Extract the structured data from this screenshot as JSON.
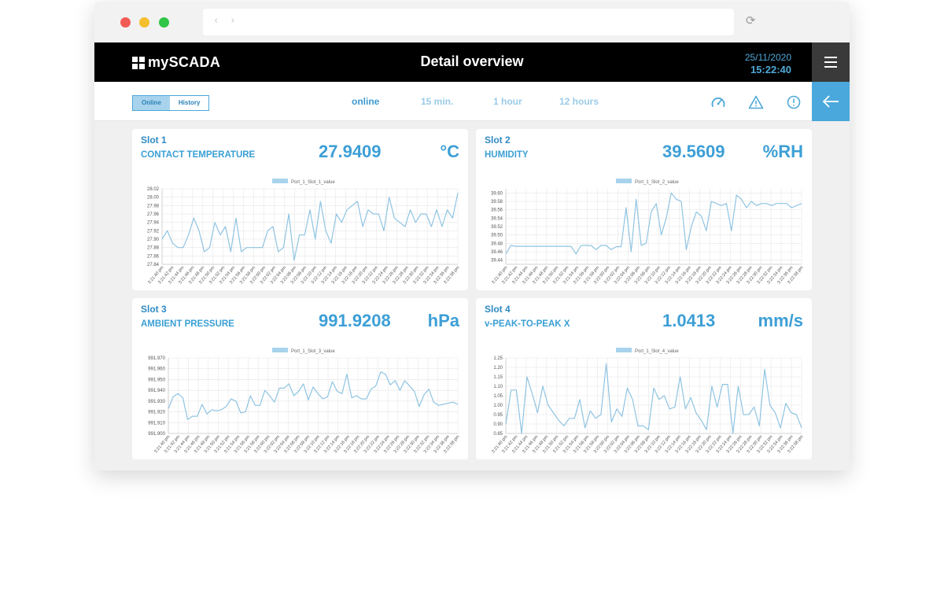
{
  "header": {
    "logo": "mySCADA",
    "title": "Detail overview",
    "date": "25/11/2020",
    "time": "15:22:40"
  },
  "toolbar": {
    "toggle": [
      "Online",
      "History"
    ],
    "ranges": [
      "online",
      "15 min.",
      "1 hour",
      "12 hours"
    ],
    "icons": [
      "gauge-icon",
      "warning-icon",
      "info-icon"
    ]
  },
  "colors": {
    "accent": "#3d9fd6",
    "line": "#8fc4e2",
    "legend": "#a8d3ec"
  },
  "panels": [
    {
      "slot": "Slot 1",
      "quantity": "CONTACT TEMPERATURE",
      "value": "27.9409",
      "unit": "°C"
    },
    {
      "slot": "Slot 2",
      "quantity": "HUMIDITY",
      "value": "39.5609",
      "unit": "%RH"
    },
    {
      "slot": "Slot 3",
      "quantity": "AMBIENT PRESSURE",
      "value": "991.9208",
      "unit": "hPa"
    },
    {
      "slot": "Slot 4",
      "quantity": "v-PEAK-TO-PEAK X",
      "value": "1.0413",
      "unit": "mm/s"
    }
  ],
  "chart_data": [
    {
      "type": "line",
      "series": [
        {
          "name": "Port_1_Slot_1_value",
          "values": [
            27.9,
            27.92,
            27.89,
            27.88,
            27.88,
            27.91,
            27.95,
            27.92,
            27.87,
            27.88,
            27.94,
            27.91,
            27.93,
            27.87,
            27.95,
            27.87,
            27.88,
            27.88,
            27.88,
            27.88,
            27.92,
            27.93,
            27.87,
            27.88,
            27.96,
            27.85,
            27.91,
            27.91,
            27.97,
            27.9,
            27.99,
            27.92,
            27.89,
            27.96,
            27.94,
            27.97,
            27.98,
            27.99,
            27.93,
            27.97,
            27.96,
            27.96,
            27.92,
            28.0,
            27.95,
            27.94,
            27.93,
            27.97,
            27.94,
            27.96,
            27.96,
            27.93,
            27.97,
            27.93,
            27.97,
            27.95,
            28.01
          ]
        }
      ],
      "x_ticks": [
        "3:21:40 pm",
        "3:21:42 pm",
        "3:21:44 pm",
        "3:21:46 pm",
        "3:21:48 pm",
        "3:21:50 pm",
        "3:21:52 pm",
        "3:21:54 pm",
        "3:21:56 pm",
        "3:21:58 pm",
        "3:22:00 pm",
        "3:22:02 pm",
        "3:22:04 pm",
        "3:22:06 pm",
        "3:22:08 pm",
        "3:22:10 pm",
        "3:22:12 pm",
        "3:22:14 pm",
        "3:22:16 pm",
        "3:22:18 pm",
        "3:22:20 pm",
        "3:22:22 pm",
        "3:22:24 pm",
        "3:22:26 pm",
        "3:22:28 pm",
        "3:22:30 pm",
        "3:22:32 pm",
        "3:22:34 pm",
        "3:22:36 pm",
        "3:22:38 pm"
      ],
      "y_ticks": [
        "28.02",
        "28.00",
        "27.98",
        "27.96",
        "27.94",
        "27.92",
        "27.90",
        "27.88",
        "27.86",
        "27.84"
      ],
      "ylim": [
        27.84,
        28.02
      ],
      "grid": true,
      "legend": "top-center"
    },
    {
      "type": "line",
      "series": [
        {
          "name": "Port_1_Slot_2_value",
          "values": [
            39.455,
            39.475,
            39.473,
            39.473,
            39.473,
            39.473,
            39.473,
            39.473,
            39.473,
            39.473,
            39.473,
            39.473,
            39.473,
            39.473,
            39.455,
            39.475,
            39.475,
            39.475,
            39.465,
            39.475,
            39.475,
            39.465,
            39.472,
            39.472,
            39.565,
            39.46,
            39.585,
            39.475,
            39.48,
            39.555,
            39.575,
            39.5,
            39.54,
            39.6,
            39.585,
            39.58,
            39.465,
            39.52,
            39.555,
            39.545,
            39.51,
            39.58,
            39.575,
            39.57,
            39.575,
            39.51,
            39.595,
            39.585,
            39.565,
            39.58,
            39.57,
            39.575,
            39.575,
            39.57,
            39.575,
            39.575,
            39.575,
            39.565,
            39.57,
            39.575
          ]
        }
      ],
      "x_ticks": [
        "3:21:40 pm",
        "3:21:42 pm",
        "3:21:44 pm",
        "3:21:46 pm",
        "3:21:48 pm",
        "3:21:50 pm",
        "3:21:52 pm",
        "3:21:54 pm",
        "3:21:56 pm",
        "3:21:58 pm",
        "3:22:00 pm",
        "3:22:02 pm",
        "3:22:04 pm",
        "3:22:06 pm",
        "3:22:08 pm",
        "3:22:10 pm",
        "3:22:12 pm",
        "3:22:14 pm",
        "3:22:16 pm",
        "3:22:18 pm",
        "3:22:20 pm",
        "3:22:22 pm",
        "3:22:24 pm",
        "3:22:26 pm",
        "3:22:28 pm",
        "3:22:30 pm",
        "3:22:32 pm",
        "3:22:34 pm",
        "3:22:36 pm",
        "3:22:38 pm"
      ],
      "y_ticks": [
        "39.60",
        "39.58",
        "39.56",
        "39.54",
        "39.52",
        "39.50",
        "39.48",
        "39.46",
        "39.44"
      ],
      "ylim": [
        39.43,
        39.61
      ],
      "grid": true,
      "legend": "top-center"
    },
    {
      "type": "line",
      "series": [
        {
          "name": "Port_1_Slot_3_value",
          "values": [
            991.923,
            991.934,
            991.937,
            991.933,
            991.913,
            991.916,
            991.916,
            991.927,
            991.918,
            991.922,
            991.921,
            991.922,
            991.925,
            991.932,
            991.93,
            991.919,
            991.92,
            991.935,
            991.926,
            991.926,
            991.94,
            991.935,
            991.929,
            991.942,
            991.942,
            991.946,
            991.935,
            991.939,
            991.946,
            991.931,
            991.943,
            991.937,
            991.932,
            991.934,
            991.948,
            991.939,
            991.937,
            991.955,
            991.933,
            991.935,
            991.932,
            991.932,
            991.941,
            991.944,
            991.957,
            991.955,
            991.945,
            991.949,
            991.94,
            991.949,
            991.944,
            991.939,
            991.925,
            991.936,
            991.941,
            991.929,
            991.926,
            991.927,
            991.928,
            991.929,
            991.927
          ]
        }
      ],
      "x_ticks": [
        "3:21:40 pm",
        "3:21:42 pm",
        "3:21:44 pm",
        "3:21:46 pm",
        "3:21:48 pm",
        "3:21:50 pm",
        "3:21:52 pm",
        "3:21:54 pm",
        "3:21:56 pm",
        "3:21:58 pm",
        "3:22:00 pm",
        "3:22:02 pm",
        "3:22:04 pm",
        "3:22:06 pm",
        "3:22:08 pm",
        "3:22:10 pm",
        "3:22:12 pm",
        "3:22:14 pm",
        "3:22:16 pm",
        "3:22:18 pm",
        "3:22:20 pm",
        "3:22:22 pm",
        "3:22:24 pm",
        "3:22:26 pm",
        "3:22:28 pm",
        "3:22:30 pm",
        "3:22:32 pm",
        "3:22:34 pm",
        "3:22:36 pm",
        "3:22:38 pm"
      ],
      "y_ticks": [
        "991.970",
        "991.960",
        "991.950",
        "991.940",
        "991.930",
        "991.920",
        "991.910",
        "991.900"
      ],
      "ylim": [
        991.9,
        991.97
      ],
      "grid": true,
      "legend": "top-center"
    },
    {
      "type": "line",
      "series": [
        {
          "name": "Port_1_Slot_4_value",
          "values": [
            0.9,
            1.08,
            1.08,
            0.85,
            1.15,
            1.06,
            0.96,
            1.1,
            1.0,
            0.96,
            0.92,
            0.89,
            0.93,
            0.93,
            1.03,
            0.88,
            0.97,
            0.93,
            0.95,
            1.22,
            0.91,
            0.98,
            0.94,
            1.09,
            1.03,
            0.89,
            0.89,
            0.87,
            1.09,
            1.03,
            1.05,
            0.98,
            0.99,
            1.15,
            0.98,
            1.04,
            0.96,
            0.92,
            0.87,
            1.1,
            0.99,
            1.11,
            1.11,
            0.85,
            1.1,
            0.95,
            0.95,
            0.99,
            0.89,
            1.19,
            1.0,
            0.96,
            0.88,
            1.01,
            0.96,
            0.95,
            0.88
          ]
        }
      ],
      "x_ticks": [
        "3:21:40 pm",
        "3:21:42 pm",
        "3:21:44 pm",
        "3:21:46 pm",
        "3:21:48 pm",
        "3:21:50 pm",
        "3:21:52 pm",
        "3:21:54 pm",
        "3:21:56 pm",
        "3:21:58 pm",
        "3:22:00 pm",
        "3:22:02 pm",
        "3:22:04 pm",
        "3:22:06 pm",
        "3:22:08 pm",
        "3:22:10 pm",
        "3:22:12 pm",
        "3:22:14 pm",
        "3:22:16 pm",
        "3:22:18 pm",
        "3:22:20 pm",
        "3:22:22 pm",
        "3:22:24 pm",
        "3:22:26 pm",
        "3:22:28 pm",
        "3:22:30 pm",
        "3:22:32 pm",
        "3:22:34 pm",
        "3:22:36 pm",
        "3:22:38 pm"
      ],
      "y_ticks": [
        "1.25",
        "1.20",
        "1.15",
        "1.10",
        "1.05",
        "1.00",
        "0.95",
        "0.90",
        "0.85"
      ],
      "ylim": [
        0.85,
        1.25
      ],
      "grid": true,
      "legend": "top-center"
    }
  ]
}
